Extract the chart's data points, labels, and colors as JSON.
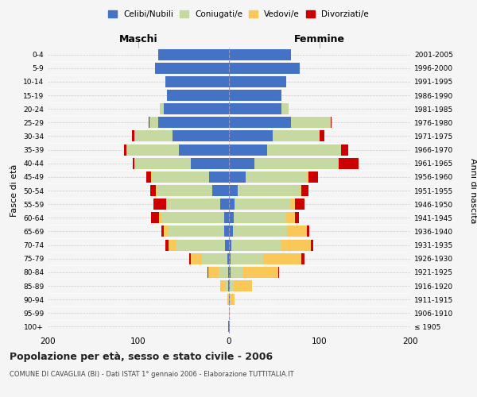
{
  "age_groups": [
    "100+",
    "95-99",
    "90-94",
    "85-89",
    "80-84",
    "75-79",
    "70-74",
    "65-69",
    "60-64",
    "55-59",
    "50-54",
    "45-49",
    "40-44",
    "35-39",
    "30-34",
    "25-29",
    "20-24",
    "15-19",
    "10-14",
    "5-9",
    "0-4"
  ],
  "birth_years": [
    "≤ 1905",
    "1906-1910",
    "1911-1915",
    "1916-1920",
    "1921-1925",
    "1926-1930",
    "1931-1935",
    "1936-1940",
    "1941-1945",
    "1946-1950",
    "1951-1955",
    "1956-1960",
    "1961-1965",
    "1966-1970",
    "1971-1975",
    "1976-1980",
    "1981-1985",
    "1986-1990",
    "1991-1995",
    "1996-2000",
    "2001-2005"
  ],
  "colors": {
    "celibi": "#4472c4",
    "coniugati": "#c5d9a0",
    "vedovi": "#fac858",
    "divorziati": "#cc0000"
  },
  "maschi": {
    "celibi": [
      1,
      0,
      0,
      1,
      1,
      2,
      4,
      5,
      5,
      10,
      18,
      22,
      42,
      55,
      62,
      78,
      72,
      68,
      70,
      82,
      78
    ],
    "coniugati": [
      0,
      0,
      1,
      3,
      10,
      28,
      55,
      62,
      70,
      58,
      62,
      63,
      62,
      58,
      42,
      10,
      4,
      0,
      0,
      0,
      0
    ],
    "vedovi": [
      0,
      0,
      1,
      6,
      12,
      12,
      8,
      5,
      2,
      1,
      1,
      1,
      0,
      0,
      0,
      0,
      0,
      0,
      0,
      0,
      0
    ],
    "divorziati": [
      0,
      0,
      0,
      0,
      1,
      2,
      3,
      3,
      9,
      14,
      6,
      5,
      2,
      3,
      3,
      1,
      0,
      0,
      0,
      0,
      0
    ]
  },
  "femmine": {
    "nubili": [
      1,
      0,
      1,
      1,
      2,
      2,
      3,
      4,
      5,
      6,
      10,
      18,
      28,
      42,
      48,
      68,
      58,
      58,
      63,
      78,
      68
    ],
    "coniugate": [
      0,
      0,
      1,
      4,
      14,
      36,
      55,
      60,
      58,
      62,
      68,
      68,
      92,
      82,
      52,
      44,
      8,
      0,
      0,
      0,
      0
    ],
    "vedove": [
      0,
      1,
      4,
      20,
      38,
      42,
      32,
      22,
      10,
      5,
      2,
      2,
      1,
      0,
      0,
      0,
      0,
      0,
      0,
      0,
      0
    ],
    "divorziate": [
      0,
      0,
      0,
      0,
      1,
      3,
      3,
      3,
      4,
      10,
      8,
      10,
      22,
      8,
      5,
      1,
      0,
      0,
      0,
      0,
      0
    ]
  },
  "title": "Popolazione per età, sesso e stato civile - 2006",
  "subtitle": "COMUNE DI CAVAGLIIA (BI) - Dati ISTAT 1° gennaio 2006 - Elaborazione TUTTITALIA.IT",
  "ylabel_left": "Fasce di età",
  "ylabel_right": "Anni di nascita",
  "xlabel_maschi": "Maschi",
  "xlabel_femmine": "Femmine",
  "xlim": [
    -200,
    200
  ],
  "xticks": [
    -200,
    -100,
    0,
    100,
    200
  ],
  "legend_labels": [
    "Celibi/Nubili",
    "Coniugati/e",
    "Vedovi/e",
    "Divorziati/e"
  ],
  "background_color": "#f5f5f5"
}
